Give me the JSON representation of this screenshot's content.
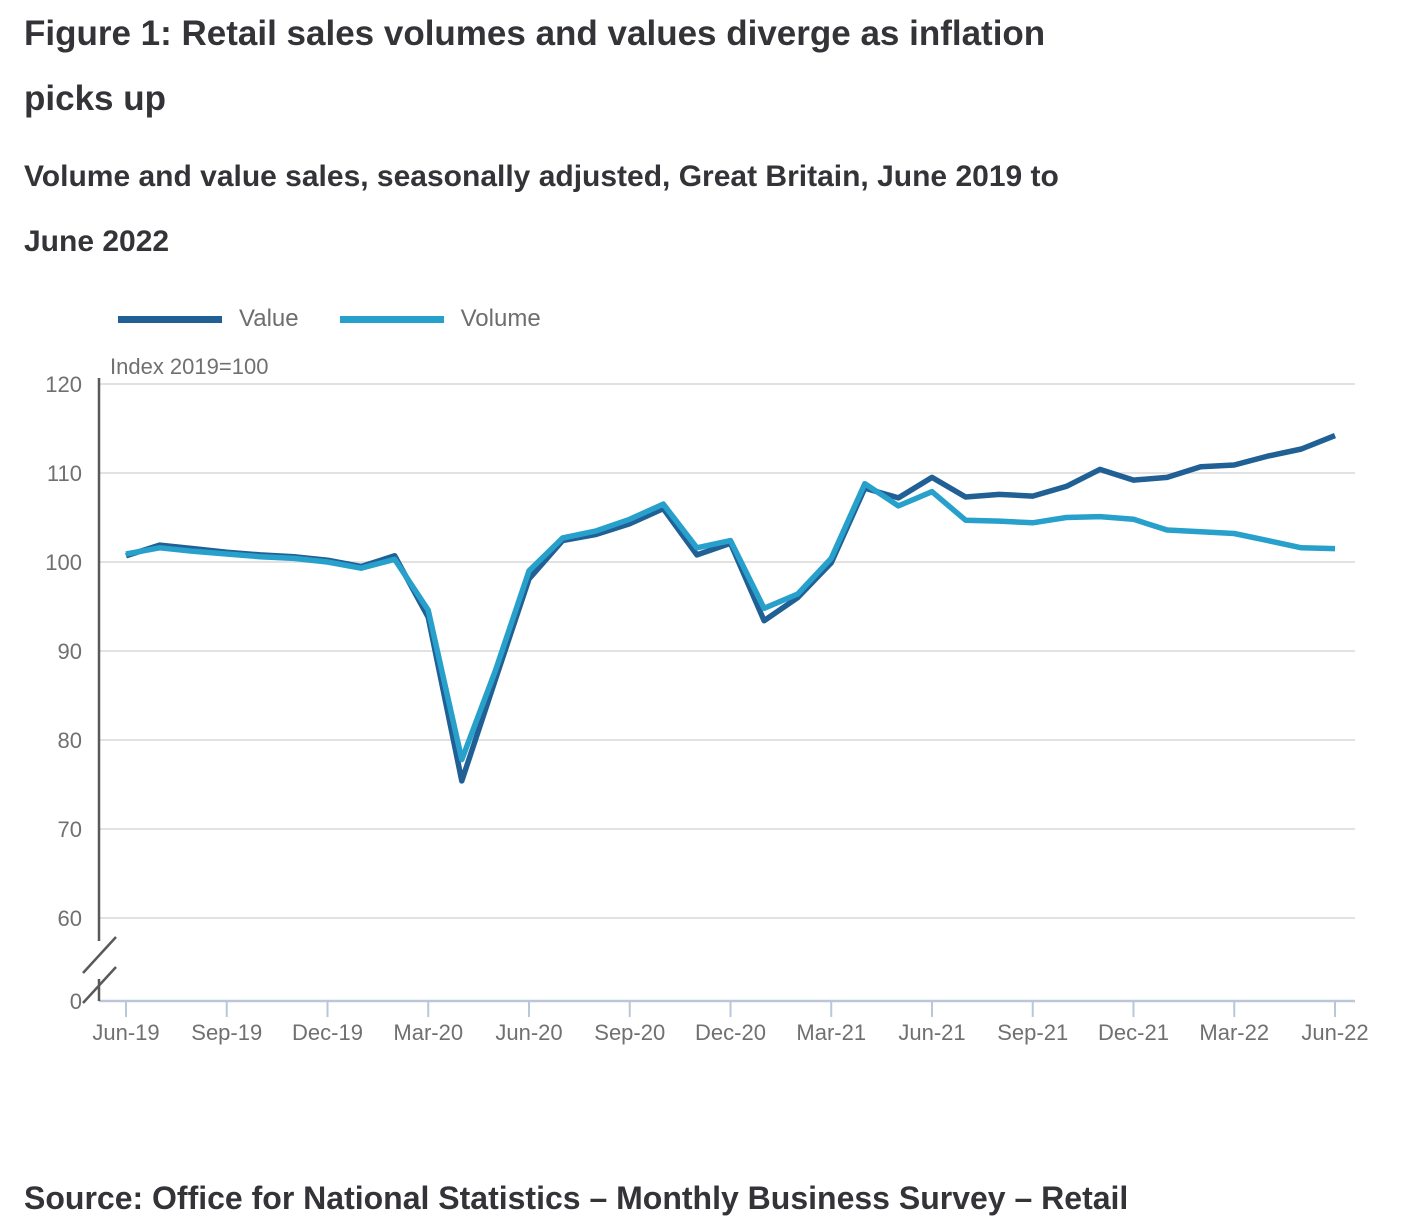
{
  "header": {
    "title_lines": [
      "Figure 1: Retail sales volumes and values diverge as inflation",
      "picks up"
    ],
    "subtitle_lines": [
      "Volume and value sales, seasonally adjusted, Great Britain, June 2019 to",
      "June 2022"
    ]
  },
  "chart_data": {
    "type": "line",
    "title": "Figure 1: Retail sales volumes and values diverge as inflation picks up",
    "subtitle": "Volume and value sales, seasonally adjusted, Great Britain, June 2019 to June 2022",
    "unit_label": "Index 2019=100",
    "x": [
      "Jun-19",
      "Jul-19",
      "Aug-19",
      "Sep-19",
      "Oct-19",
      "Nov-19",
      "Dec-19",
      "Jan-20",
      "Feb-20",
      "Mar-20",
      "Apr-20",
      "May-20",
      "Jun-20",
      "Jul-20",
      "Aug-20",
      "Sep-20",
      "Oct-20",
      "Nov-20",
      "Dec-20",
      "Jan-21",
      "Feb-21",
      "Mar-21",
      "Apr-21",
      "May-21",
      "Jun-21",
      "Jul-21",
      "Aug-21",
      "Sep-21",
      "Oct-21",
      "Nov-21",
      "Dec-21",
      "Jan-22",
      "Feb-22",
      "Mar-22",
      "Apr-22",
      "May-22",
      "Jun-22"
    ],
    "series": [
      {
        "name": "Value",
        "color": "#206095",
        "values": [
          100.7,
          101.9,
          101.5,
          101.1,
          100.8,
          100.6,
          100.2,
          99.5,
          100.7,
          93.8,
          75.4,
          86.8,
          98.1,
          102.4,
          103.1,
          104.3,
          106.0,
          100.8,
          102.1,
          93.4,
          96.0,
          99.9,
          108.3,
          107.2,
          109.5,
          107.3,
          107.6,
          107.4,
          108.5,
          110.4,
          109.2,
          109.5,
          110.7,
          110.9,
          111.9,
          112.7,
          114.2
        ]
      },
      {
        "name": "Volume",
        "color": "#27A0CC",
        "values": [
          100.9,
          101.6,
          101.2,
          100.9,
          100.6,
          100.4,
          100.0,
          99.3,
          100.3,
          94.6,
          77.8,
          87.8,
          99.0,
          102.7,
          103.5,
          104.8,
          106.5,
          101.6,
          102.4,
          94.8,
          96.4,
          100.4,
          108.8,
          106.3,
          107.9,
          104.7,
          104.6,
          104.4,
          105.0,
          105.1,
          104.8,
          103.6,
          103.4,
          103.2,
          102.4,
          101.6,
          101.5
        ]
      }
    ],
    "x_tick_labels": [
      "Jun-19",
      "Sep-19",
      "Dec-19",
      "Mar-20",
      "Jun-20",
      "Sep-20",
      "Dec-20",
      "Mar-21",
      "Jun-21",
      "Sep-21",
      "Dec-21",
      "Mar-22",
      "Jun-22"
    ],
    "x_tick_every": 3,
    "y_ticks": [
      120,
      110,
      100,
      90,
      80,
      70,
      60
    ],
    "zero_tick_label": "0",
    "axis_break": true,
    "ylim": [
      60,
      120
    ],
    "grid": "horizontal",
    "legend_position": "top-left",
    "colors": {
      "grid": "#e2e2e2",
      "y_axis": "#595959",
      "x_axis": "#b9c7d9",
      "tick_text": "#707071"
    }
  },
  "source": {
    "text": "Source: Office for National Statistics – Monthly Business Survey – Retail"
  }
}
